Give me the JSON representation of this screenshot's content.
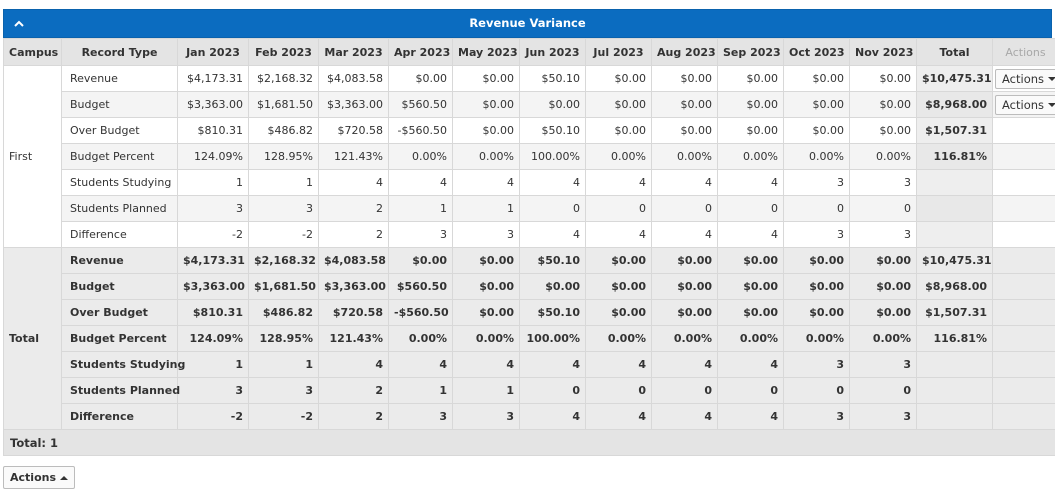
{
  "panel": {
    "title": "Revenue Variance",
    "collapse_icon": "chevron-up-icon"
  },
  "columns": {
    "campus": "Campus",
    "record_type": "Record Type",
    "months": [
      "Jan 2023",
      "Feb 2023",
      "Mar 2023",
      "Apr 2023",
      "May 2023",
      "Jun 2023",
      "Jul 2023",
      "Aug 2023",
      "Sep 2023",
      "Oct 2023",
      "Nov 2023"
    ],
    "total": "Total",
    "actions": "Actions"
  },
  "groups": [
    {
      "campus": "First",
      "rows": [
        {
          "type": "Revenue",
          "values": [
            "$4,173.31",
            "$2,168.32",
            "$4,083.58",
            "$0.00",
            "$0.00",
            "$50.10",
            "$0.00",
            "$0.00",
            "$0.00",
            "$0.00",
            "$0.00"
          ],
          "total": "$10,475.31",
          "action": "Actions"
        },
        {
          "type": "Budget",
          "values": [
            "$3,363.00",
            "$1,681.50",
            "$3,363.00",
            "$560.50",
            "$0.00",
            "$0.00",
            "$0.00",
            "$0.00",
            "$0.00",
            "$0.00",
            "$0.00"
          ],
          "total": "$8,968.00",
          "action": "Actions"
        },
        {
          "type": "Over Budget",
          "values": [
            "$810.31",
            "$486.82",
            "$720.58",
            "-$560.50",
            "$0.00",
            "$50.10",
            "$0.00",
            "$0.00",
            "$0.00",
            "$0.00",
            "$0.00"
          ],
          "total": "$1,507.31",
          "action": ""
        },
        {
          "type": "Budget Percent",
          "values": [
            "124.09%",
            "128.95%",
            "121.43%",
            "0.00%",
            "0.00%",
            "100.00%",
            "0.00%",
            "0.00%",
            "0.00%",
            "0.00%",
            "0.00%"
          ],
          "total": "116.81%",
          "action": ""
        },
        {
          "type": "Students Studying",
          "values": [
            "1",
            "1",
            "4",
            "4",
            "4",
            "4",
            "4",
            "4",
            "4",
            "3",
            "3"
          ],
          "total": "",
          "action": ""
        },
        {
          "type": "Students Planned",
          "values": [
            "3",
            "3",
            "2",
            "1",
            "1",
            "0",
            "0",
            "0",
            "0",
            "0",
            "0"
          ],
          "total": "",
          "action": ""
        },
        {
          "type": "Difference",
          "values": [
            "-2",
            "-2",
            "2",
            "3",
            "3",
            "4",
            "4",
            "4",
            "4",
            "3",
            "3"
          ],
          "total": "",
          "action": ""
        }
      ]
    }
  ],
  "grand_total": {
    "campus": "Total",
    "rows": [
      {
        "type": "Revenue",
        "values": [
          "$4,173.31",
          "$2,168.32",
          "$4,083.58",
          "$0.00",
          "$0.00",
          "$50.10",
          "$0.00",
          "$0.00",
          "$0.00",
          "$0.00",
          "$0.00"
        ],
        "total": "$10,475.31"
      },
      {
        "type": "Budget",
        "values": [
          "$3,363.00",
          "$1,681.50",
          "$3,363.00",
          "$560.50",
          "$0.00",
          "$0.00",
          "$0.00",
          "$0.00",
          "$0.00",
          "$0.00",
          "$0.00"
        ],
        "total": "$8,968.00"
      },
      {
        "type": "Over Budget",
        "values": [
          "$810.31",
          "$486.82",
          "$720.58",
          "-$560.50",
          "$0.00",
          "$50.10",
          "$0.00",
          "$0.00",
          "$0.00",
          "$0.00",
          "$0.00"
        ],
        "total": "$1,507.31"
      },
      {
        "type": "Budget Percent",
        "values": [
          "124.09%",
          "128.95%",
          "121.43%",
          "0.00%",
          "0.00%",
          "100.00%",
          "0.00%",
          "0.00%",
          "0.00%",
          "0.00%",
          "0.00%"
        ],
        "total": "116.81%"
      },
      {
        "type": "Students Studying",
        "values": [
          "1",
          "1",
          "4",
          "4",
          "4",
          "4",
          "4",
          "4",
          "4",
          "3",
          "3"
        ],
        "total": ""
      },
      {
        "type": "Students Planned",
        "values": [
          "3",
          "3",
          "2",
          "1",
          "1",
          "0",
          "0",
          "0",
          "0",
          "0",
          "0"
        ],
        "total": ""
      },
      {
        "type": "Difference",
        "values": [
          "-2",
          "-2",
          "2",
          "3",
          "3",
          "4",
          "4",
          "4",
          "4",
          "3",
          "3"
        ],
        "total": ""
      }
    ]
  },
  "footer": {
    "total_label": "Total: 1"
  },
  "bottom_actions": {
    "label": "Actions"
  },
  "colors": {
    "header_bg": "#0b6cc0",
    "column_header_bg": "#e4e4e4",
    "total_bg": "#ebebeb"
  }
}
